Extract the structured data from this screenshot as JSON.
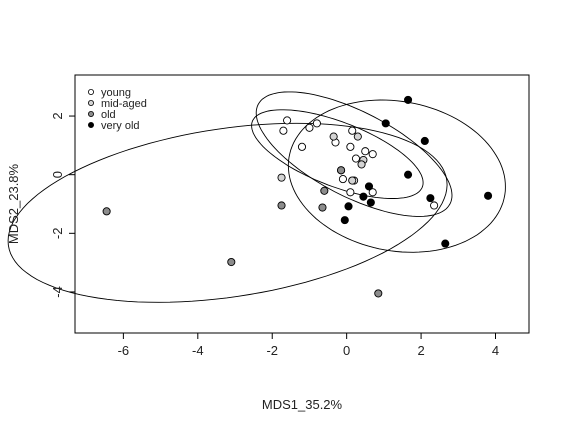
{
  "chart_data": {
    "type": "scatter",
    "title": "",
    "xlabel": "MDS1_35.2%",
    "ylabel": "MDS2_23.8%",
    "xlim": [
      -7.3,
      4.9
    ],
    "ylim": [
      -5.4,
      3.4
    ],
    "xticks": [
      -6,
      -4,
      -2,
      0,
      2,
      4
    ],
    "yticks": [
      -4,
      -2,
      0,
      2
    ],
    "grid": false,
    "legend_position": "top-left",
    "series": [
      {
        "name": "young",
        "color": "#ffffff",
        "points": [
          [
            -1.6,
            1.85
          ],
          [
            -1.7,
            1.5
          ],
          [
            -1.0,
            1.6
          ],
          [
            -0.8,
            1.75
          ],
          [
            -1.2,
            0.95
          ],
          [
            -0.3,
            1.1
          ],
          [
            0.15,
            1.5
          ],
          [
            0.1,
            0.95
          ],
          [
            0.25,
            0.55
          ],
          [
            0.5,
            0.8
          ],
          [
            0.7,
            0.7
          ],
          [
            -0.1,
            -0.15
          ],
          [
            0.2,
            -0.2
          ],
          [
            0.7,
            -0.6
          ],
          [
            0.1,
            -0.6
          ],
          [
            2.35,
            -1.05
          ]
        ]
      },
      {
        "name": "mid-aged",
        "color": "#d3d3d3",
        "points": [
          [
            -0.35,
            1.3
          ],
          [
            0.3,
            1.3
          ],
          [
            0.45,
            0.5
          ],
          [
            0.4,
            0.35
          ],
          [
            -0.15,
            0.15
          ],
          [
            0.15,
            -0.2
          ],
          [
            -1.75,
            -0.1
          ]
        ]
      },
      {
        "name": "old",
        "color": "#8c8c8c",
        "points": [
          [
            -6.45,
            -1.25
          ],
          [
            -3.1,
            -2.98
          ],
          [
            -1.75,
            -1.05
          ],
          [
            -0.65,
            -1.12
          ],
          [
            -0.6,
            -0.55
          ],
          [
            0.85,
            -4.05
          ],
          [
            -0.15,
            0.15
          ]
        ]
      },
      {
        "name": "very old",
        "color": "#000000",
        "points": [
          [
            1.65,
            2.55
          ],
          [
            1.05,
            1.75
          ],
          [
            2.1,
            1.15
          ],
          [
            1.65,
            0.0
          ],
          [
            0.6,
            -0.4
          ],
          [
            0.45,
            -0.75
          ],
          [
            0.65,
            -0.95
          ],
          [
            0.05,
            -1.08
          ],
          [
            -0.05,
            -1.55
          ],
          [
            2.25,
            -0.8
          ],
          [
            3.8,
            -0.72
          ],
          [
            2.65,
            -2.35
          ]
        ]
      }
    ],
    "ellipses": [
      {
        "series": "young",
        "center": [
          -0.25,
          0.7
        ],
        "semi_axes": [
          2.55,
          1.05
        ],
        "angle_deg": -28
      },
      {
        "series": "mid-aged",
        "center": [
          0.2,
          0.7
        ],
        "semi_axes": [
          3.1,
          1.35
        ],
        "angle_deg": -36
      },
      {
        "series": "old",
        "center": [
          -3.2,
          -1.3
        ],
        "semi_axes": [
          6.0,
          2.85
        ],
        "angle_deg": 12
      },
      {
        "series": "very old",
        "center": [
          1.35,
          -0.05
        ],
        "semi_axes": [
          3.0,
          2.5
        ],
        "angle_deg": -25
      }
    ]
  }
}
